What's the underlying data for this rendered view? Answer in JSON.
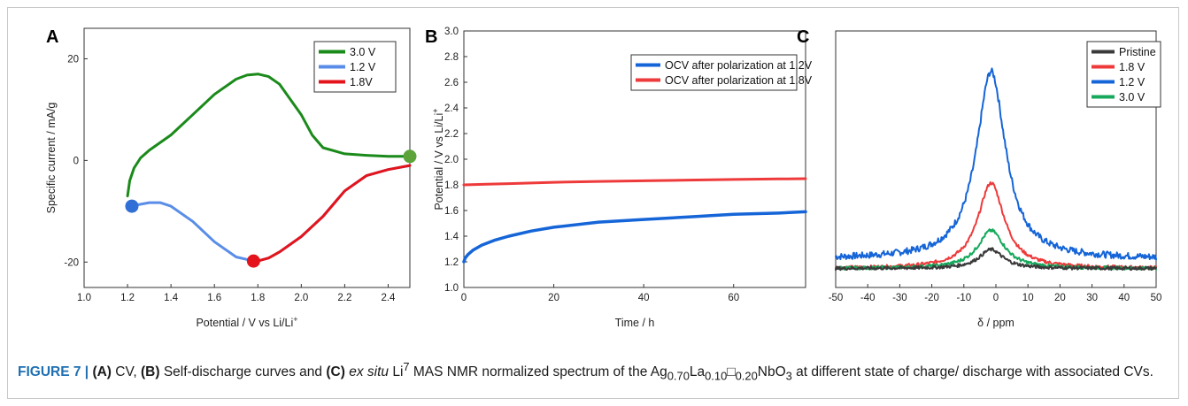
{
  "caption": {
    "label": "FIGURE 7 | ",
    "a": "(A)",
    "t1": " CV, ",
    "b": "(B)",
    "t2": " Self-discharge curves and ",
    "c": "(C)",
    "t3": " ",
    "exsitu": "ex situ",
    "t4": " Li",
    "sup7": "7",
    "t5": " MAS NMR normalized spectrum of the Ag",
    "s1": "0.70",
    "t6": "La",
    "s2": "0.10",
    "t7": "□",
    "s3": "0.20",
    "t8": "NbO",
    "s4": "3",
    "t9": " at different state of charge/ discharge with associated CVs."
  },
  "chart_data": [
    {
      "panel_label": "A",
      "type": "line",
      "xlabel": "Potential / V vs Li/Li",
      "xlabel_sup": "+",
      "ylabel": "Specific current / mA/g",
      "xlim": [
        1.0,
        2.5
      ],
      "ylim": [
        -25,
        26
      ],
      "xticks": [
        "1.0",
        "1.2",
        "1.4",
        "1.6",
        "1.8",
        "2.0",
        "2.2",
        "2.4"
      ],
      "yticks": [
        "20",
        "0",
        "-20"
      ],
      "legend": [
        "3.0 V",
        "1.2 V",
        "1.8V"
      ],
      "legend_position": "top-right",
      "colors": [
        "#1a8a1a",
        "#5a8de8",
        "#e3141b"
      ],
      "series": [
        {
          "name": "3.0 V",
          "x": [
            1.2,
            1.21,
            1.23,
            1.26,
            1.3,
            1.4,
            1.5,
            1.6,
            1.7,
            1.75,
            1.8,
            1.85,
            1.9,
            2.0,
            2.05,
            2.1,
            2.2,
            2.3,
            2.4,
            2.5
          ],
          "y": [
            -7,
            -4,
            -1.5,
            0.5,
            2,
            5,
            9,
            13,
            16,
            16.8,
            17,
            16.5,
            15,
            9,
            5,
            2.5,
            1.3,
            1.0,
            0.8,
            0.8
          ]
        },
        {
          "name": "1.2 V",
          "x": [
            2.5,
            2.4,
            2.3,
            2.2,
            2.1,
            2.0,
            1.9,
            1.85,
            1.8,
            1.78,
            1.7,
            1.6,
            1.5,
            1.4,
            1.35,
            1.3,
            1.25,
            1.22
          ],
          "y": [
            -1,
            -1.8,
            -3,
            -6,
            -11,
            -15,
            -18,
            -19.2,
            -19.8,
            -19.8,
            -19,
            -16,
            -12,
            -9,
            -8.3,
            -8.3,
            -8.7,
            -9
          ]
        },
        {
          "name": "1.8V",
          "x": [
            2.5,
            2.4,
            2.3,
            2.2,
            2.1,
            2.0,
            1.9,
            1.85,
            1.8,
            1.78
          ],
          "y": [
            -1,
            -1.8,
            -3,
            -6,
            -11,
            -15,
            -18,
            -19.2,
            -19.8,
            -19.8
          ]
        }
      ],
      "markers": [
        {
          "x": 2.5,
          "y": 0.8,
          "color": "#5ca33a"
        },
        {
          "x": 1.22,
          "y": -9,
          "color": "#2f6fd6"
        },
        {
          "x": 1.78,
          "y": -19.8,
          "color": "#e3141b"
        }
      ]
    },
    {
      "panel_label": "B",
      "type": "line",
      "xlabel": "Time / h",
      "ylabel": "Potential / V vs Li/Li",
      "ylabel_sup": "+",
      "xlim": [
        0,
        76
      ],
      "ylim": [
        1.0,
        3.0
      ],
      "xticks": [
        "0",
        "20",
        "40",
        "60"
      ],
      "yticks": [
        "1.0",
        "1.2",
        "1.4",
        "1.6",
        "1.8",
        "2.0",
        "2.2",
        "2.4",
        "2.6",
        "2.8",
        "3.0"
      ],
      "legend": [
        "OCV after polarization at 1.2V",
        "OCV after polarization at 1.8V"
      ],
      "legend_position": "top-right",
      "colors": [
        "#1565d8",
        "#ee3a3a"
      ],
      "series": [
        {
          "name": "OCV after polarization at 1.2V",
          "x": [
            0,
            0.3,
            1,
            2,
            4,
            7,
            10,
            15,
            20,
            30,
            40,
            50,
            60,
            70,
            76
          ],
          "y": [
            1.2,
            1.23,
            1.26,
            1.29,
            1.33,
            1.37,
            1.4,
            1.44,
            1.47,
            1.51,
            1.53,
            1.55,
            1.57,
            1.58,
            1.59
          ]
        },
        {
          "name": "OCV after polarization at 1.8V",
          "x": [
            0,
            5,
            10,
            20,
            30,
            40,
            50,
            60,
            70,
            76
          ],
          "y": [
            1.8,
            1.805,
            1.81,
            1.82,
            1.827,
            1.832,
            1.837,
            1.842,
            1.846,
            1.848
          ]
        }
      ]
    },
    {
      "panel_label": "C",
      "type": "line",
      "xlabel": "δ / ppm",
      "xlim": [
        -50,
        50
      ],
      "xticks": [
        "-50",
        "-40",
        "-30",
        "-20",
        "-10",
        "0",
        "10",
        "20",
        "30",
        "40",
        "50"
      ],
      "legend": [
        "Pristine",
        "1.8 V",
        "1.2 V",
        "3.0 V"
      ],
      "legend_position": "top-right",
      "colors": [
        "#3a3a3a",
        "#ee3a3a",
        "#1565d8",
        "#17a85c"
      ],
      "peak_center": -1.5,
      "series": [
        {
          "name": "Pristine",
          "baseline": 0,
          "peak_height": 0.08,
          "width": 4.5
        },
        {
          "name": "1.8 V",
          "baseline": 0.0,
          "peak_height": 0.36,
          "width": 5
        },
        {
          "name": "1.2 V",
          "baseline": 0.04,
          "peak_height": 0.79,
          "width": 5.5
        },
        {
          "name": "3.0 V",
          "baseline": 0.0,
          "peak_height": 0.16,
          "width": 5
        }
      ],
      "ylim": [
        -0.08,
        1.0
      ]
    }
  ]
}
